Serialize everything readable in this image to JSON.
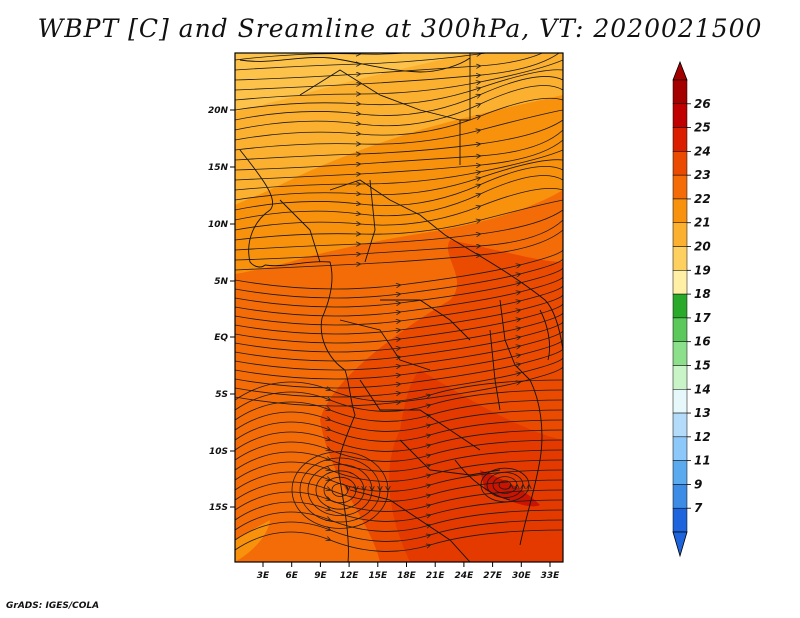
{
  "title": "WBPT [C] and Sreamline at 300hPa, VT: 2020021500",
  "credit": "GrADS: IGES/COLA",
  "lat_labels": [
    "20N",
    "15N",
    "10N",
    "5N",
    "EQ",
    "5S",
    "10S",
    "15S"
  ],
  "lon_labels": [
    "3E",
    "6E",
    "9E",
    "12E",
    "15E",
    "18E",
    "21E",
    "24E",
    "27E",
    "30E",
    "33E"
  ],
  "colorbar": {
    "levels": [
      "26",
      "25",
      "24",
      "23",
      "22",
      "21",
      "20",
      "19",
      "18",
      "17",
      "16",
      "15",
      "14",
      "13",
      "12",
      "11",
      "9",
      "7"
    ],
    "colors": [
      "#a50000",
      "#c00000",
      "#dc1e00",
      "#eb4b00",
      "#f46c08",
      "#f8910c",
      "#fcb030",
      "#fdd060",
      "#fff0a6",
      "#2aaa2a",
      "#5ac85a",
      "#8ce08c",
      "#c8f4c8",
      "#e6f8fa",
      "#b4dcfa",
      "#8cc8fa",
      "#5aaaf0",
      "#3c8ce6",
      "#1e64dc"
    ]
  },
  "legend_colors": {
    "warm": "#f46c08",
    "warmer": "#eb4b00",
    "hot": "#dc1e00",
    "mild": "#f8910c",
    "cool": "#fcb030"
  }
}
